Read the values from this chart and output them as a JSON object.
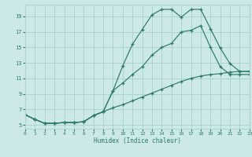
{
  "xlabel": "Humidex (Indice chaleur)",
  "bg_color": "#cce8e8",
  "line_color": "#2d7a6a",
  "grid_color": "#add4d4",
  "curve1_x": [
    0,
    1,
    2,
    3,
    4,
    5,
    6,
    7,
    8,
    9,
    10,
    11,
    12,
    13,
    14,
    15,
    16,
    17,
    18,
    19,
    20,
    21,
    22,
    23
  ],
  "curve1_y": [
    6.3,
    5.7,
    5.2,
    5.2,
    5.3,
    5.3,
    5.4,
    6.2,
    6.7,
    9.4,
    12.6,
    15.4,
    17.3,
    19.2,
    19.9,
    19.9,
    18.9,
    19.9,
    19.9,
    17.4,
    14.9,
    12.9,
    11.9,
    11.9
  ],
  "curve2_x": [
    0,
    1,
    2,
    3,
    4,
    5,
    6,
    7,
    8,
    9,
    10,
    11,
    12,
    13,
    14,
    15,
    16,
    17,
    18,
    19,
    20,
    21,
    22,
    23
  ],
  "curve2_y": [
    6.3,
    5.7,
    5.2,
    5.2,
    5.3,
    5.3,
    5.4,
    6.2,
    6.7,
    9.4,
    10.4,
    11.5,
    12.5,
    14.0,
    15.0,
    15.5,
    17.0,
    17.2,
    17.8,
    15.0,
    12.5,
    11.5,
    11.5,
    11.5
  ],
  "curve3_x": [
    0,
    1,
    2,
    3,
    4,
    5,
    6,
    7,
    8,
    9,
    10,
    11,
    12,
    13,
    14,
    15,
    16,
    17,
    18,
    19,
    20,
    21,
    22,
    23
  ],
  "curve3_y": [
    6.3,
    5.7,
    5.2,
    5.2,
    5.3,
    5.3,
    5.4,
    6.2,
    6.7,
    7.2,
    7.6,
    8.1,
    8.6,
    9.1,
    9.6,
    10.1,
    10.6,
    11.0,
    11.3,
    11.5,
    11.6,
    11.8,
    11.9,
    11.9
  ],
  "xlim": [
    0,
    23
  ],
  "ylim": [
    4.5,
    20.5
  ],
  "yticks": [
    5,
    7,
    9,
    11,
    13,
    15,
    17,
    19
  ],
  "xticks": [
    0,
    1,
    2,
    3,
    4,
    5,
    6,
    7,
    8,
    9,
    10,
    11,
    12,
    13,
    14,
    15,
    16,
    17,
    18,
    19,
    20,
    21,
    22,
    23
  ]
}
